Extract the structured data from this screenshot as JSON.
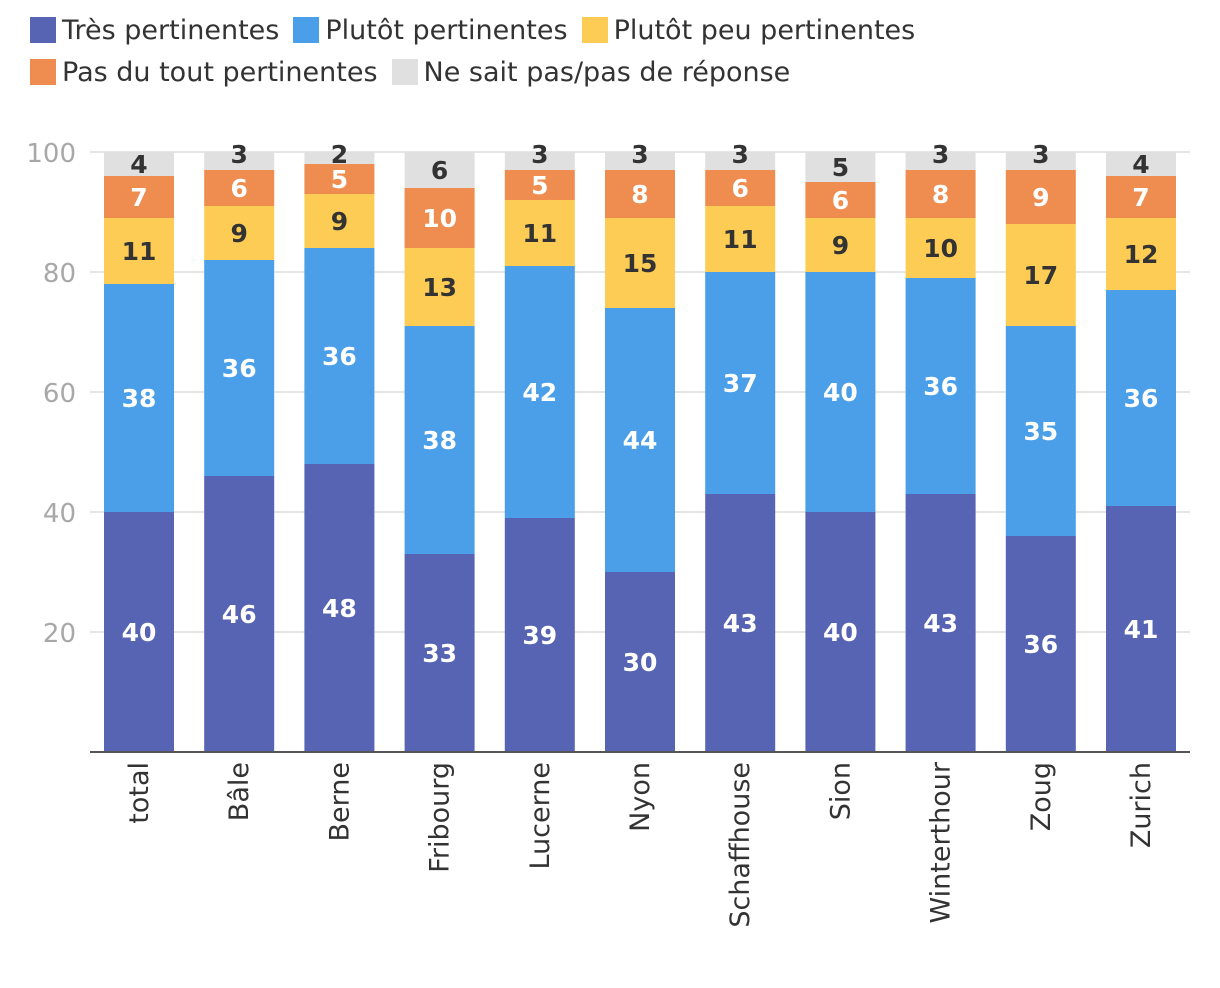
{
  "chart_data": {
    "type": "bar",
    "stacked": true,
    "categories": [
      "total",
      "Bâle",
      "Berne",
      "Fribourg",
      "Lucerne",
      "Nyon",
      "Schaffhouse",
      "Sion",
      "Winterthour",
      "Zoug",
      "Zurich"
    ],
    "series": [
      {
        "name": "Très pertinentes",
        "color": "#5763b3",
        "values": [
          40,
          46,
          48,
          33,
          39,
          30,
          43,
          40,
          43,
          36,
          41
        ]
      },
      {
        "name": "Plutôt pertinentes",
        "color": "#4a9fe8",
        "values": [
          38,
          36,
          36,
          38,
          42,
          44,
          37,
          40,
          36,
          35,
          36
        ]
      },
      {
        "name": "Plutôt peu pertinentes",
        "color": "#fccc55",
        "values": [
          11,
          9,
          9,
          13,
          11,
          15,
          11,
          9,
          10,
          17,
          12
        ]
      },
      {
        "name": "Pas du tout pertinentes",
        "color": "#ef8c50",
        "values": [
          7,
          6,
          5,
          10,
          5,
          8,
          6,
          6,
          8,
          9,
          7
        ]
      },
      {
        "name": "Ne sait pas/pas de réponse",
        "color": "#e0e0e0",
        "values": [
          4,
          3,
          2,
          6,
          3,
          3,
          3,
          5,
          3,
          3,
          4
        ]
      }
    ],
    "ylim": [
      0,
      100
    ],
    "yticks": [
      20,
      40,
      60,
      80,
      100
    ],
    "title": "",
    "xlabel": "",
    "ylabel": "",
    "legend": "top",
    "grid": true
  }
}
